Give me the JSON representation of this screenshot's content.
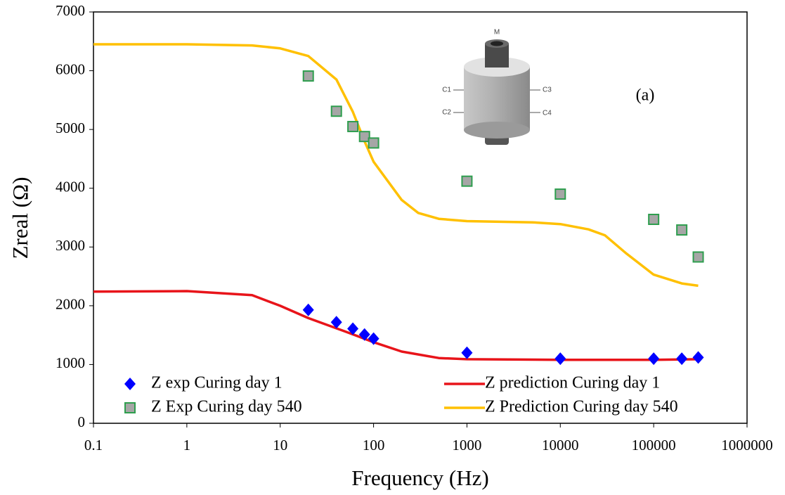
{
  "chart_data": {
    "type": "scatter-line",
    "x_label": "Frequency (Hz)",
    "y_label": "Zreal (Ω)",
    "annotation": "(a)",
    "inset_labels": [
      "M",
      "C1",
      "C2",
      "C3",
      "C4"
    ],
    "xscale": "log",
    "xlim": [
      0.1,
      1000000
    ],
    "ylim": [
      0,
      7000
    ],
    "xticks": [
      0.1,
      1,
      10,
      100,
      1000,
      10000,
      100000,
      1000000
    ],
    "yticks": [
      0,
      1000,
      2000,
      3000,
      4000,
      5000,
      6000,
      7000
    ],
    "legend": "bottom",
    "series": [
      {
        "name": "Z exp Curing day 1",
        "kind": "marker",
        "marker": "diamond",
        "color": "#0000ff",
        "x": [
          20,
          40,
          60,
          80,
          100,
          1000,
          10000,
          100000,
          200000,
          300000
        ],
        "values": [
          1930,
          1720,
          1610,
          1510,
          1440,
          1200,
          1100,
          1100,
          1100,
          1120
        ]
      },
      {
        "name": "Z prediction Curing day 1",
        "kind": "line",
        "color": "#e8141a",
        "x": [
          0.1,
          1,
          5,
          10,
          20,
          50,
          100,
          200,
          500,
          1000,
          10000,
          100000,
          300000
        ],
        "values": [
          2240,
          2250,
          2180,
          2000,
          1790,
          1560,
          1380,
          1220,
          1110,
          1090,
          1080,
          1080,
          1090
        ]
      },
      {
        "name": "Z Exp Curing day 540",
        "kind": "marker",
        "marker": "square",
        "color": "#a6a6a6",
        "x": [
          20,
          40,
          60,
          80,
          100,
          1000,
          10000,
          100000,
          200000,
          300000
        ],
        "values": [
          5910,
          5310,
          5050,
          4880,
          4770,
          4120,
          3900,
          3470,
          3290,
          2830
        ]
      },
      {
        "name": "Z Prediction Curing day 540",
        "kind": "line",
        "color": "#ffc000",
        "x": [
          0.1,
          1,
          5,
          10,
          20,
          40,
          60,
          80,
          100,
          200,
          300,
          500,
          1000,
          5000,
          10000,
          20000,
          30000,
          50000,
          100000,
          200000,
          300000
        ],
        "values": [
          6450,
          6450,
          6430,
          6380,
          6250,
          5850,
          5300,
          4800,
          4450,
          3800,
          3580,
          3480,
          3440,
          3420,
          3390,
          3300,
          3200,
          2900,
          2530,
          2380,
          2340
        ]
      }
    ]
  }
}
